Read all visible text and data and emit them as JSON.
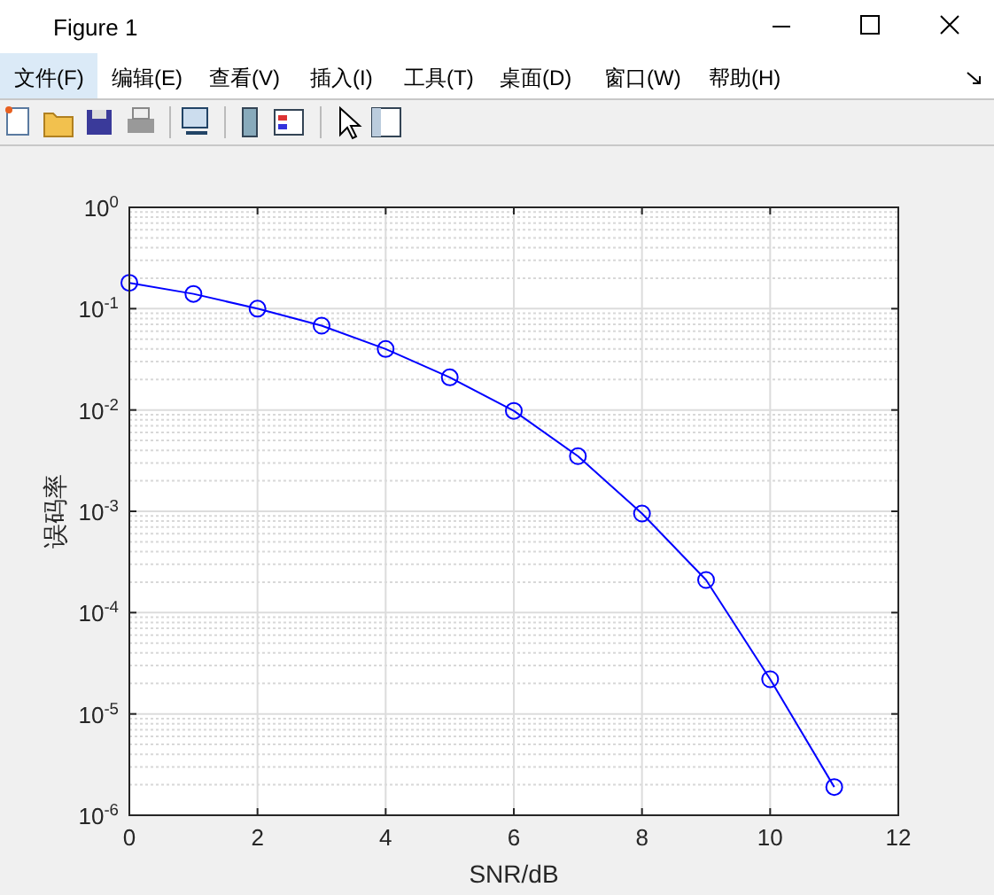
{
  "chart_data": {
    "type": "line",
    "xlabel": "SNR/dB",
    "ylabel": "误码率",
    "annotations": [
      "Figure 1",
      "文件(F)",
      "编辑(E)",
      "查看(V)",
      "插入(I)",
      "工具(T)",
      "桌面(D)",
      "窗口(W)",
      "帮助(H)"
    ],
    "x": [
      0,
      1,
      2,
      3,
      4,
      5,
      6,
      7,
      8,
      9,
      10,
      11
    ],
    "series": [
      {
        "color": "#0000ff",
        "values": [
          0.18,
          0.14,
          0.1,
          0.068,
          0.04,
          0.021,
          0.0098,
          0.0035,
          0.00095,
          0.00021,
          2.2e-05,
          1.9e-06
        ]
      }
    ],
    "xlim": [
      0,
      12
    ],
    "xticks": [
      0,
      2,
      4,
      6,
      8,
      10,
      12
    ],
    "ylim": [
      1e-06,
      1
    ],
    "yticks": [
      {
        "value": 1e-06,
        "label": "10$^{-6}$"
      },
      {
        "value": 1e-05,
        "label": "10$^{-5}$"
      },
      {
        "value": 0.0001,
        "label": "10$^{-4}$"
      },
      {
        "value": 0.001,
        "label": "10$^{-3}$"
      },
      {
        "value": 0.01,
        "label": "10$^{-2}$"
      },
      {
        "value": 0.1,
        "label": "10$^{-1}$"
      },
      {
        "value": 1,
        "label": "10$^{0}$"
      }
    ],
    "log": true,
    "grid": true,
    "marker": "circle",
    "line_style": "solid"
  }
}
